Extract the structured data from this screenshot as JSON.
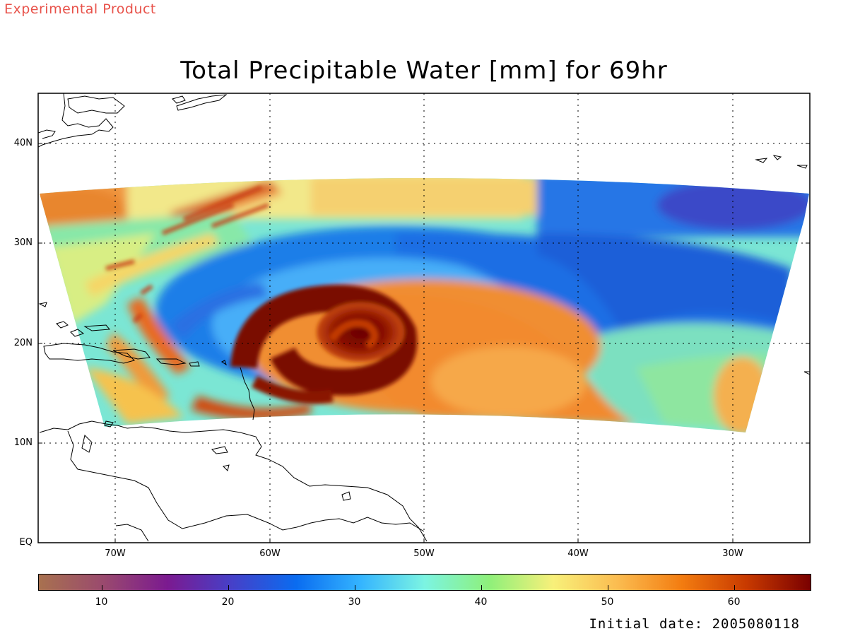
{
  "header": {
    "tag": "Experimental Product",
    "title": "Total Precipitable Water [mm] for 69hr"
  },
  "map": {
    "lat_labels": [
      "40N",
      "30N",
      "20N",
      "10N",
      "EQ"
    ],
    "lon_labels": [
      "70W",
      "60W",
      "50W",
      "40W",
      "30W"
    ],
    "lat_range": [
      0,
      45
    ],
    "lon_range": [
      -75,
      -25
    ],
    "grid": "dotted",
    "feature": "tropical cyclone vortex near 21N 55W"
  },
  "colorbar": {
    "ticks": [
      "10",
      "20",
      "30",
      "40",
      "50",
      "60"
    ],
    "range": [
      5,
      66
    ],
    "colors": [
      "#a8714f",
      "#9a4a6e",
      "#7b1a90",
      "#4640c8",
      "#0a6cf0",
      "#34b4ff",
      "#7cf4e2",
      "#8ef07a",
      "#f8f07a",
      "#fbbc50",
      "#f37c10",
      "#c83a00",
      "#7a0000"
    ]
  },
  "footer": {
    "initial_date": "Initial date: 2005080118"
  }
}
